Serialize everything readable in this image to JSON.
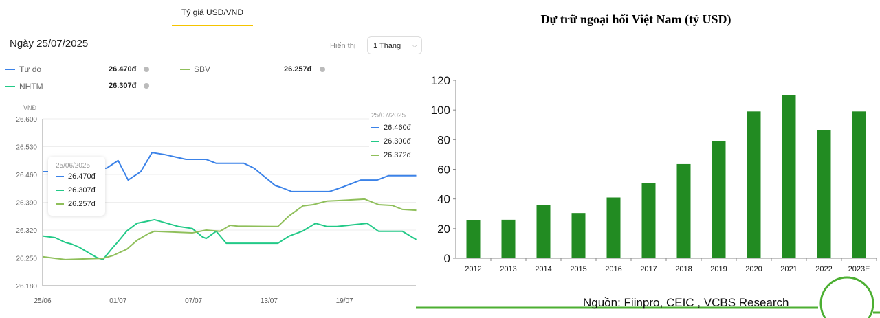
{
  "tab": {
    "label": "Tỷ giá USD/VND"
  },
  "header": {
    "date": "Ngày 25/07/2025",
    "show_label": "Hiển thị",
    "period": "1 Tháng"
  },
  "legend": [
    {
      "name": "Tự do",
      "value": "26.470đ",
      "color": "#3b82e8"
    },
    {
      "name": "SBV",
      "value": "26.257đ",
      "color": "#8fbf5a"
    },
    {
      "name": "NHTM",
      "value": "26.307đ",
      "color": "#22c987"
    }
  ],
  "tooltip_left": {
    "date": "25/06/2025",
    "values": [
      "26.470đ",
      "26.307đ",
      "26.257đ"
    ]
  },
  "tooltip_right": {
    "date": "25/07/2025",
    "values": [
      "26.460đ",
      "26.300đ",
      "26.372đ"
    ]
  },
  "chart_data": [
    {
      "type": "line",
      "title": "",
      "ylabel": "VNĐ",
      "ylim": [
        26.18,
        26.6
      ],
      "yticks": [
        "26.600",
        "26.530",
        "26.460",
        "26.390",
        "26.320",
        "26.250",
        "26.180"
      ],
      "ytick_values": [
        26.6,
        26.53,
        26.46,
        26.39,
        26.32,
        26.25,
        26.18
      ],
      "xticks": [
        "25/06",
        "01/07",
        "07/07",
        "13/07",
        "19/07"
      ],
      "xtick_days": [
        0,
        6,
        12,
        18,
        24
      ],
      "xlim_days": [
        0,
        29.7
      ],
      "series": [
        {
          "name": "Tự do",
          "color": "#3b82e8",
          "points": [
            [
              0,
              26.467
            ],
            [
              0.5,
              26.467
            ],
            [
              5.1,
              26.476
            ],
            [
              6.0,
              26.495
            ],
            [
              6.8,
              26.446
            ],
            [
              7.8,
              26.467
            ],
            [
              8.7,
              26.515
            ],
            [
              9.7,
              26.51
            ],
            [
              11.4,
              26.498
            ],
            [
              13.0,
              26.498
            ],
            [
              13.8,
              26.488
            ],
            [
              16.0,
              26.488
            ],
            [
              16.8,
              26.476
            ],
            [
              18.5,
              26.432
            ],
            [
              19.0,
              26.427
            ],
            [
              19.8,
              26.417
            ],
            [
              22.8,
              26.417
            ],
            [
              23.9,
              26.429
            ],
            [
              25.3,
              26.446
            ],
            [
              26.6,
              26.446
            ],
            [
              27.5,
              26.457
            ],
            [
              29.7,
              26.457
            ]
          ]
        },
        {
          "name": "NHTM",
          "color": "#22c987",
          "points": [
            [
              0,
              26.305
            ],
            [
              1.0,
              26.301
            ],
            [
              1.8,
              26.289
            ],
            [
              2.3,
              26.285
            ],
            [
              2.9,
              26.277
            ],
            [
              4.3,
              26.251
            ],
            [
              4.8,
              26.246
            ],
            [
              5.6,
              26.277
            ],
            [
              6.0,
              26.291
            ],
            [
              6.7,
              26.318
            ],
            [
              7.5,
              26.337
            ],
            [
              8.9,
              26.346
            ],
            [
              10.8,
              26.329
            ],
            [
              11.9,
              26.324
            ],
            [
              12.7,
              26.303
            ],
            [
              13.0,
              26.299
            ],
            [
              13.8,
              26.317
            ],
            [
              14.6,
              26.287
            ],
            [
              18.7,
              26.287
            ],
            [
              19.6,
              26.305
            ],
            [
              20.7,
              26.318
            ],
            [
              21.7,
              26.337
            ],
            [
              22.6,
              26.329
            ],
            [
              23.4,
              26.329
            ],
            [
              25.8,
              26.337
            ],
            [
              26.7,
              26.317
            ],
            [
              28.6,
              26.317
            ],
            [
              29.7,
              26.296
            ]
          ]
        },
        {
          "name": "SBV",
          "color": "#8fbf5a",
          "points": [
            [
              0,
              26.253
            ],
            [
              1.0,
              26.249
            ],
            [
              1.8,
              26.246
            ],
            [
              4.8,
              26.249
            ],
            [
              5.6,
              26.256
            ],
            [
              6.7,
              26.272
            ],
            [
              7.5,
              26.294
            ],
            [
              8.4,
              26.311
            ],
            [
              8.9,
              26.317
            ],
            [
              11.9,
              26.313
            ],
            [
              13.0,
              26.32
            ],
            [
              14.1,
              26.317
            ],
            [
              14.9,
              26.332
            ],
            [
              15.5,
              26.33
            ],
            [
              18.7,
              26.329
            ],
            [
              19.6,
              26.356
            ],
            [
              20.7,
              26.381
            ],
            [
              21.5,
              26.384
            ],
            [
              22.6,
              26.393
            ],
            [
              23.4,
              26.394
            ],
            [
              25.6,
              26.398
            ],
            [
              26.7,
              26.384
            ],
            [
              27.8,
              26.382
            ],
            [
              28.6,
              26.372
            ],
            [
              29.7,
              26.37
            ]
          ]
        }
      ]
    },
    {
      "type": "bar",
      "title": "Dự trữ ngoại hối Việt Nam (tỷ USD)",
      "xlabel": "",
      "ylabel": "",
      "ylim": [
        0,
        120
      ],
      "yticks": [
        "0",
        "20",
        "40",
        "60",
        "80",
        "100",
        "120"
      ],
      "categories": [
        "2012",
        "2013",
        "2014",
        "2015",
        "2016",
        "2017",
        "2018",
        "2019",
        "2020",
        "2021",
        "2022",
        "2023E"
      ],
      "values": [
        25.5,
        26,
        36,
        30.5,
        41,
        50.5,
        63.5,
        79,
        99,
        110,
        86.5,
        99
      ],
      "color": "#228b22",
      "source": "Nguồn: Fiinpro, CEIC , VCBS Research"
    }
  ]
}
